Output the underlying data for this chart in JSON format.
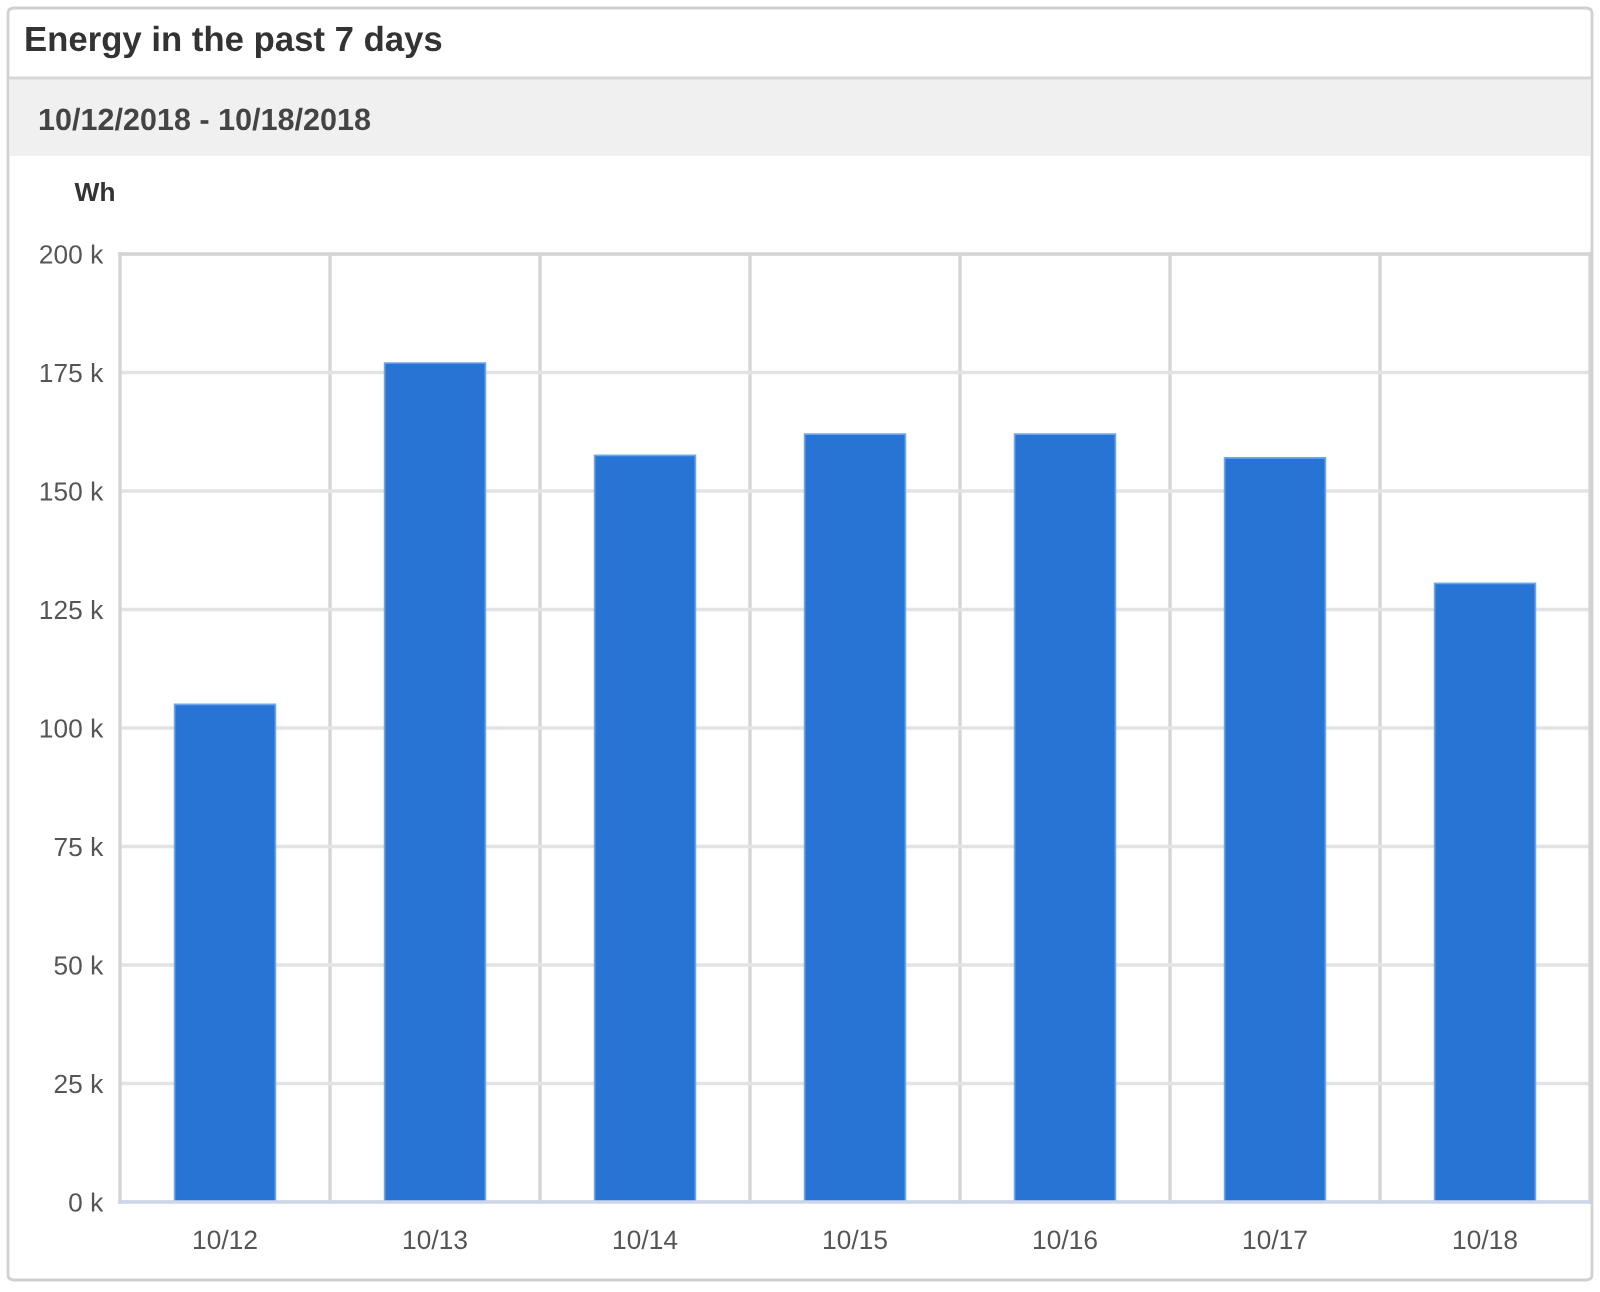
{
  "chart_data": {
    "type": "bar",
    "title": "Energy in the past 7 days",
    "subtitle": "10/12/2018 - 10/18/2018",
    "ylabel": "Wh",
    "categories": [
      "10/12",
      "10/13",
      "10/14",
      "10/15",
      "10/16",
      "10/17",
      "10/18"
    ],
    "values": [
      105000,
      177000,
      157500,
      162000,
      162000,
      157000,
      130500
    ],
    "color": "#2874d4",
    "ylim": [
      0,
      200000
    ],
    "yticks": [
      {
        "value": 0,
        "label": "0 k"
      },
      {
        "value": 25000,
        "label": "25 k"
      },
      {
        "value": 50000,
        "label": "50 k"
      },
      {
        "value": 75000,
        "label": "75 k"
      },
      {
        "value": 100000,
        "label": "100 k"
      },
      {
        "value": 125000,
        "label": "125 k"
      },
      {
        "value": 150000,
        "label": "150 k"
      },
      {
        "value": 175000,
        "label": "175 k"
      },
      {
        "value": 200000,
        "label": "200 k"
      }
    ],
    "grid": true
  }
}
